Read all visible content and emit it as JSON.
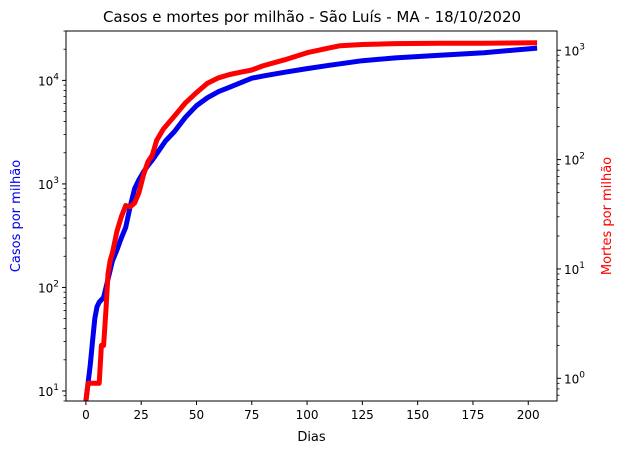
{
  "chart_data": {
    "type": "line",
    "title": "Casos e mortes por milhão - São Luís - MA - 18/10/2020",
    "xlabel": "Dias",
    "ylabel_left": "Casos por milhão",
    "ylabel_right": "Mortes por milhão",
    "xlim": [
      -9,
      213
    ],
    "ylim_left": [
      8,
      30000
    ],
    "ylim_right": [
      0.62,
      1500
    ],
    "yscale": "log",
    "grid": false,
    "x_ticks": [
      0,
      25,
      50,
      75,
      100,
      125,
      150,
      175,
      200
    ],
    "y_left_ticks": [
      {
        "value": 10,
        "base": "10",
        "exp": "1"
      },
      {
        "value": 100,
        "base": "10",
        "exp": "2"
      },
      {
        "value": 1000,
        "base": "10",
        "exp": "3"
      },
      {
        "value": 10000,
        "base": "10",
        "exp": "4"
      }
    ],
    "y_right_ticks": [
      {
        "value": 1,
        "base": "10",
        "exp": "0"
      },
      {
        "value": 10,
        "base": "10",
        "exp": "1"
      },
      {
        "value": 100,
        "base": "10",
        "exp": "2"
      },
      {
        "value": 1000,
        "base": "10",
        "exp": "3"
      }
    ],
    "series": [
      {
        "axis": "left",
        "color": "#0000ee",
        "x": [
          0,
          1,
          2,
          3,
          4,
          5,
          6,
          7,
          8,
          10,
          12,
          14,
          16,
          18,
          20,
          22,
          24,
          26,
          28,
          30,
          33,
          36,
          40,
          45,
          50,
          55,
          60,
          65,
          70,
          75,
          80,
          90,
          100,
          110,
          125,
          140,
          160,
          180,
          204
        ],
        "y": [
          8,
          12,
          18,
          30,
          50,
          65,
          72,
          76,
          80,
          120,
          180,
          230,
          300,
          380,
          600,
          900,
          1100,
          1300,
          1500,
          1700,
          2100,
          2600,
          3200,
          4400,
          5700,
          6800,
          7800,
          8600,
          9500,
          10500,
          11000,
          12000,
          13000,
          14000,
          15500,
          16500,
          17500,
          18500,
          20500
        ]
      },
      {
        "axis": "right",
        "color": "#ff0000",
        "x": [
          0,
          1,
          2,
          6,
          7,
          8,
          9,
          10,
          11,
          12,
          14,
          16,
          18,
          20,
          22,
          24,
          26,
          28,
          30,
          32,
          35,
          40,
          45,
          50,
          55,
          60,
          65,
          70,
          75,
          80,
          90,
          100,
          110,
          115,
          125,
          140,
          160,
          180,
          204
        ],
        "y": [
          0.62,
          0.9,
          0.9,
          0.9,
          2,
          2,
          4,
          9,
          12,
          14,
          22,
          30,
          38,
          37,
          40,
          50,
          72,
          95,
          110,
          150,
          190,
          250,
          330,
          410,
          500,
          560,
          600,
          630,
          660,
          720,
          820,
          950,
          1050,
          1100,
          1130,
          1150,
          1160,
          1160,
          1170
        ]
      }
    ]
  }
}
